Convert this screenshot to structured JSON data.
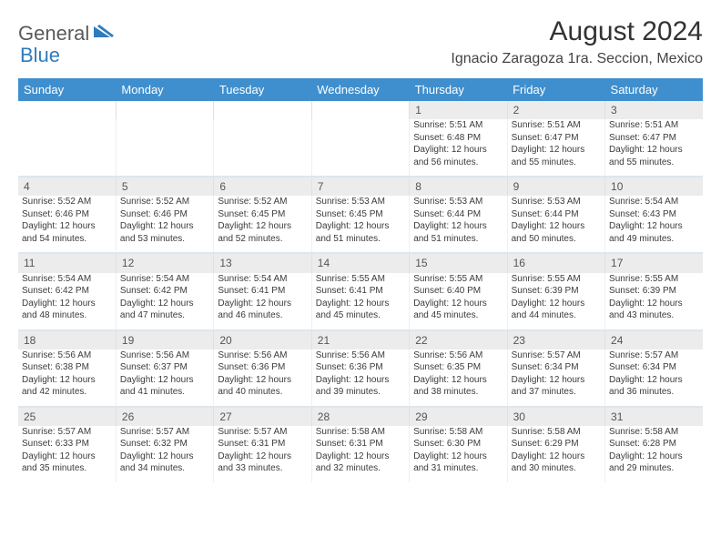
{
  "logo": {
    "text1": "General",
    "text2": "Blue"
  },
  "title": "August 2024",
  "subtitle": "Ignacio Zaragoza 1ra. Seccion, Mexico",
  "colors": {
    "header_bg": "#3f8fce",
    "header_text": "#ffffff",
    "daynum_bg": "#ececec",
    "text": "#3b3b3b",
    "logo_gray": "#5a5a5a",
    "logo_blue": "#2f7bbf"
  },
  "day_headers": [
    "Sunday",
    "Monday",
    "Tuesday",
    "Wednesday",
    "Thursday",
    "Friday",
    "Saturday"
  ],
  "weeks": [
    {
      "nums": [
        "",
        "",
        "",
        "",
        "1",
        "2",
        "3"
      ],
      "cells": [
        null,
        null,
        null,
        null,
        {
          "sunrise": "5:51 AM",
          "sunset": "6:48 PM",
          "daylight": "12 hours and 56 minutes."
        },
        {
          "sunrise": "5:51 AM",
          "sunset": "6:47 PM",
          "daylight": "12 hours and 55 minutes."
        },
        {
          "sunrise": "5:51 AM",
          "sunset": "6:47 PM",
          "daylight": "12 hours and 55 minutes."
        }
      ]
    },
    {
      "nums": [
        "4",
        "5",
        "6",
        "7",
        "8",
        "9",
        "10"
      ],
      "cells": [
        {
          "sunrise": "5:52 AM",
          "sunset": "6:46 PM",
          "daylight": "12 hours and 54 minutes."
        },
        {
          "sunrise": "5:52 AM",
          "sunset": "6:46 PM",
          "daylight": "12 hours and 53 minutes."
        },
        {
          "sunrise": "5:52 AM",
          "sunset": "6:45 PM",
          "daylight": "12 hours and 52 minutes."
        },
        {
          "sunrise": "5:53 AM",
          "sunset": "6:45 PM",
          "daylight": "12 hours and 51 minutes."
        },
        {
          "sunrise": "5:53 AM",
          "sunset": "6:44 PM",
          "daylight": "12 hours and 51 minutes."
        },
        {
          "sunrise": "5:53 AM",
          "sunset": "6:44 PM",
          "daylight": "12 hours and 50 minutes."
        },
        {
          "sunrise": "5:54 AM",
          "sunset": "6:43 PM",
          "daylight": "12 hours and 49 minutes."
        }
      ]
    },
    {
      "nums": [
        "11",
        "12",
        "13",
        "14",
        "15",
        "16",
        "17"
      ],
      "cells": [
        {
          "sunrise": "5:54 AM",
          "sunset": "6:42 PM",
          "daylight": "12 hours and 48 minutes."
        },
        {
          "sunrise": "5:54 AM",
          "sunset": "6:42 PM",
          "daylight": "12 hours and 47 minutes."
        },
        {
          "sunrise": "5:54 AM",
          "sunset": "6:41 PM",
          "daylight": "12 hours and 46 minutes."
        },
        {
          "sunrise": "5:55 AM",
          "sunset": "6:41 PM",
          "daylight": "12 hours and 45 minutes."
        },
        {
          "sunrise": "5:55 AM",
          "sunset": "6:40 PM",
          "daylight": "12 hours and 45 minutes."
        },
        {
          "sunrise": "5:55 AM",
          "sunset": "6:39 PM",
          "daylight": "12 hours and 44 minutes."
        },
        {
          "sunrise": "5:55 AM",
          "sunset": "6:39 PM",
          "daylight": "12 hours and 43 minutes."
        }
      ]
    },
    {
      "nums": [
        "18",
        "19",
        "20",
        "21",
        "22",
        "23",
        "24"
      ],
      "cells": [
        {
          "sunrise": "5:56 AM",
          "sunset": "6:38 PM",
          "daylight": "12 hours and 42 minutes."
        },
        {
          "sunrise": "5:56 AM",
          "sunset": "6:37 PM",
          "daylight": "12 hours and 41 minutes."
        },
        {
          "sunrise": "5:56 AM",
          "sunset": "6:36 PM",
          "daylight": "12 hours and 40 minutes."
        },
        {
          "sunrise": "5:56 AM",
          "sunset": "6:36 PM",
          "daylight": "12 hours and 39 minutes."
        },
        {
          "sunrise": "5:56 AM",
          "sunset": "6:35 PM",
          "daylight": "12 hours and 38 minutes."
        },
        {
          "sunrise": "5:57 AM",
          "sunset": "6:34 PM",
          "daylight": "12 hours and 37 minutes."
        },
        {
          "sunrise": "5:57 AM",
          "sunset": "6:34 PM",
          "daylight": "12 hours and 36 minutes."
        }
      ]
    },
    {
      "nums": [
        "25",
        "26",
        "27",
        "28",
        "29",
        "30",
        "31"
      ],
      "cells": [
        {
          "sunrise": "5:57 AM",
          "sunset": "6:33 PM",
          "daylight": "12 hours and 35 minutes."
        },
        {
          "sunrise": "5:57 AM",
          "sunset": "6:32 PM",
          "daylight": "12 hours and 34 minutes."
        },
        {
          "sunrise": "5:57 AM",
          "sunset": "6:31 PM",
          "daylight": "12 hours and 33 minutes."
        },
        {
          "sunrise": "5:58 AM",
          "sunset": "6:31 PM",
          "daylight": "12 hours and 32 minutes."
        },
        {
          "sunrise": "5:58 AM",
          "sunset": "6:30 PM",
          "daylight": "12 hours and 31 minutes."
        },
        {
          "sunrise": "5:58 AM",
          "sunset": "6:29 PM",
          "daylight": "12 hours and 30 minutes."
        },
        {
          "sunrise": "5:58 AM",
          "sunset": "6:28 PM",
          "daylight": "12 hours and 29 minutes."
        }
      ]
    }
  ],
  "labels": {
    "sunrise": "Sunrise:",
    "sunset": "Sunset:",
    "daylight": "Daylight:"
  }
}
